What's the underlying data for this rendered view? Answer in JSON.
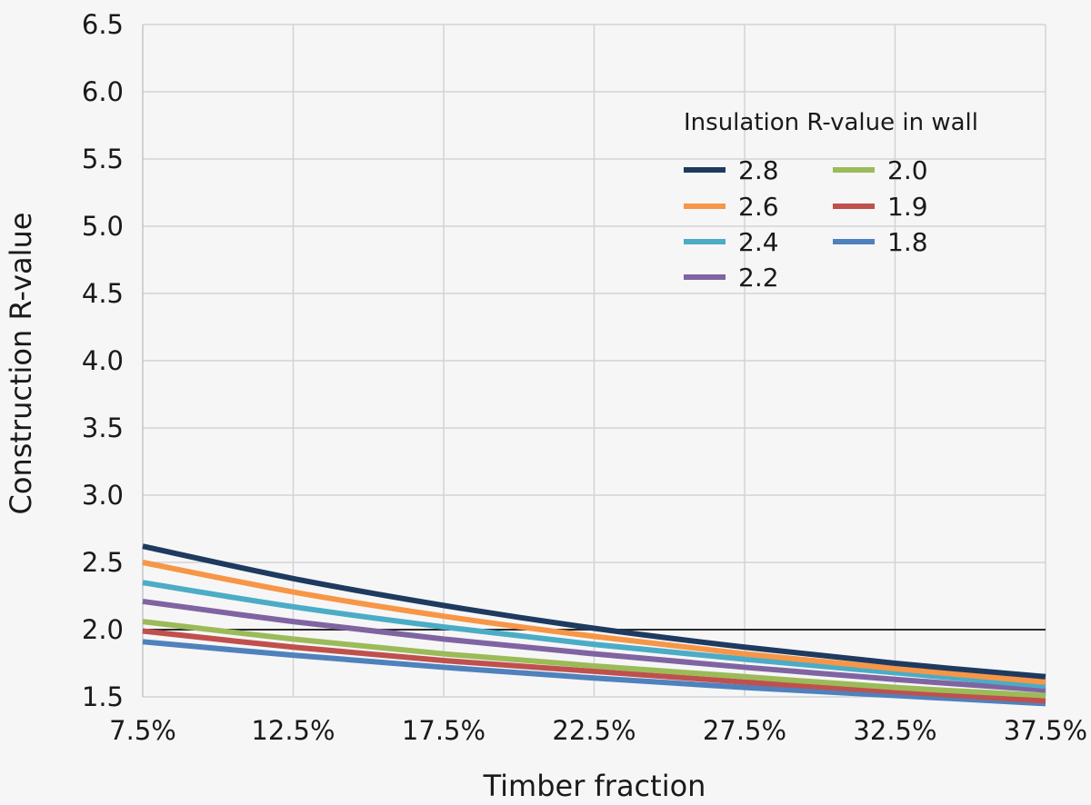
{
  "chart_data": {
    "type": "line",
    "xlabel": "Timber fraction",
    "ylabel": "Construction R-value",
    "x": [
      7.5,
      12.5,
      17.5,
      22.5,
      27.5,
      32.5,
      37.5
    ],
    "xtick_labels": [
      "7.5%",
      "12.5%",
      "17.5%",
      "22.5%",
      "27.5%",
      "32.5%",
      "37.5%"
    ],
    "ytick_labels": [
      "1.5",
      "2.0",
      "2.5",
      "3.0",
      "3.5",
      "4.0",
      "4.5",
      "5.0",
      "5.5",
      "6.0",
      "6.5"
    ],
    "xlim": [
      7.5,
      37.5
    ],
    "ylim": [
      1.5,
      6.5
    ],
    "grid": true,
    "legend": {
      "title": "Insulation R-value in wall",
      "placement": "upper-right"
    },
    "reference_line": {
      "y": 2.0,
      "color": "#2b2b2b"
    },
    "series": [
      {
        "name": "2.8",
        "color": "#1f3a5f",
        "values": [
          2.62,
          2.38,
          2.18,
          2.01,
          1.87,
          1.75,
          1.65
        ]
      },
      {
        "name": "2.6",
        "color": "#f79646",
        "values": [
          2.5,
          2.28,
          2.1,
          1.95,
          1.82,
          1.71,
          1.61
        ]
      },
      {
        "name": "2.4",
        "color": "#4bacc6",
        "values": [
          2.35,
          2.17,
          2.02,
          1.89,
          1.78,
          1.68,
          1.58
        ]
      },
      {
        "name": "2.2",
        "color": "#8064a2",
        "values": [
          2.21,
          2.06,
          1.93,
          1.82,
          1.72,
          1.63,
          1.55
        ]
      },
      {
        "name": "2.0",
        "color": "#9bbb59",
        "values": [
          2.06,
          1.93,
          1.82,
          1.73,
          1.65,
          1.57,
          1.51
        ]
      },
      {
        "name": "1.9",
        "color": "#c0504d",
        "values": [
          1.99,
          1.87,
          1.77,
          1.69,
          1.61,
          1.54,
          1.47
        ]
      },
      {
        "name": "1.8",
        "color": "#4f81bd",
        "values": [
          1.91,
          1.81,
          1.72,
          1.64,
          1.57,
          1.51,
          1.45
        ]
      }
    ]
  }
}
